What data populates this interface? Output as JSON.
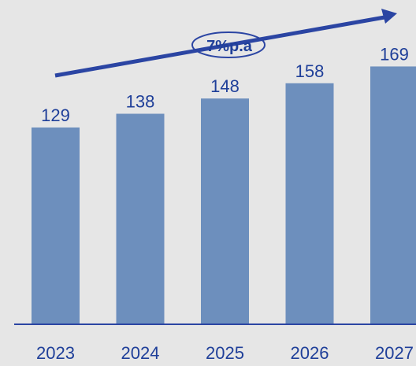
{
  "chart_data": {
    "type": "bar",
    "categories": [
      "2023",
      "2024",
      "2025",
      "2026",
      "2027"
    ],
    "values": [
      129,
      138,
      148,
      158,
      169
    ],
    "ylim": [
      0,
      178
    ],
    "annotation": "7%p.a",
    "colors": {
      "bar": "#6d8fbd",
      "text": "#1f3f99",
      "arrow": "#2b45a3",
      "axis": "#2b45a3",
      "background": "#e6e6e6"
    }
  }
}
